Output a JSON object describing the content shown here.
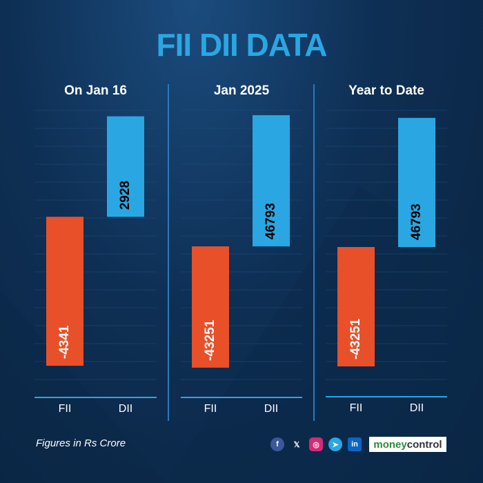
{
  "title": "FII DII DATA",
  "footnote": "Figures in Rs Crore",
  "brand": {
    "part1": "money",
    "part2": "control"
  },
  "social_icons": [
    "facebook-icon",
    "x-icon",
    "instagram-icon",
    "telegram-icon",
    "linkedin-icon"
  ],
  "colors": {
    "fii": "#e8502a",
    "dii": "#2aa7e2",
    "title": "#2aa7e2"
  },
  "chart_data": [
    {
      "type": "bar",
      "title": "On Jan 16",
      "categories": [
        "FII",
        "DII"
      ],
      "values": [
        -4341,
        2928
      ],
      "ylim": [
        -4500,
        3100
      ]
    },
    {
      "type": "bar",
      "title": "Jan 2025",
      "categories": [
        "FII",
        "DII"
      ],
      "values": [
        -43251,
        46793
      ],
      "ylim": [
        -46000,
        48500
      ]
    },
    {
      "type": "bar",
      "title": "Year to Date",
      "categories": [
        "FII",
        "DII"
      ],
      "values": [
        -43251,
        46793
      ],
      "ylim": [
        -45500,
        49500
      ]
    }
  ]
}
